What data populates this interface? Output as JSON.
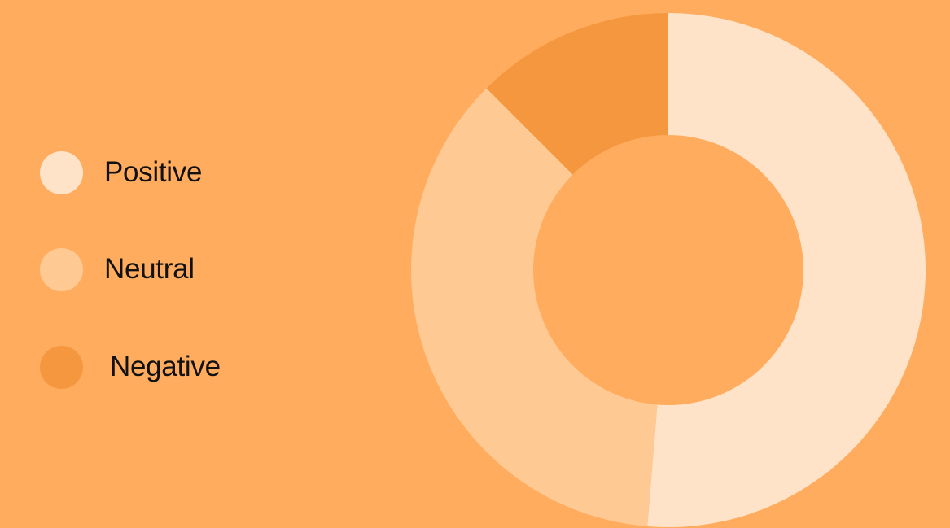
{
  "background_color": "#FFAC5E",
  "chart_data": {
    "type": "pie",
    "variant": "donut",
    "title": "",
    "legend": {
      "placement": "left",
      "entries": [
        "Positive",
        "Neutral",
        "Negative"
      ]
    },
    "series": [
      {
        "name": "",
        "categories": [
          "Positive",
          "Neutral",
          "Negative"
        ],
        "values": [
          51.3,
          36.2,
          12.5
        ],
        "colors": [
          "#FFE3C9",
          "#FFC993",
          "#F5973E"
        ]
      }
    ]
  }
}
